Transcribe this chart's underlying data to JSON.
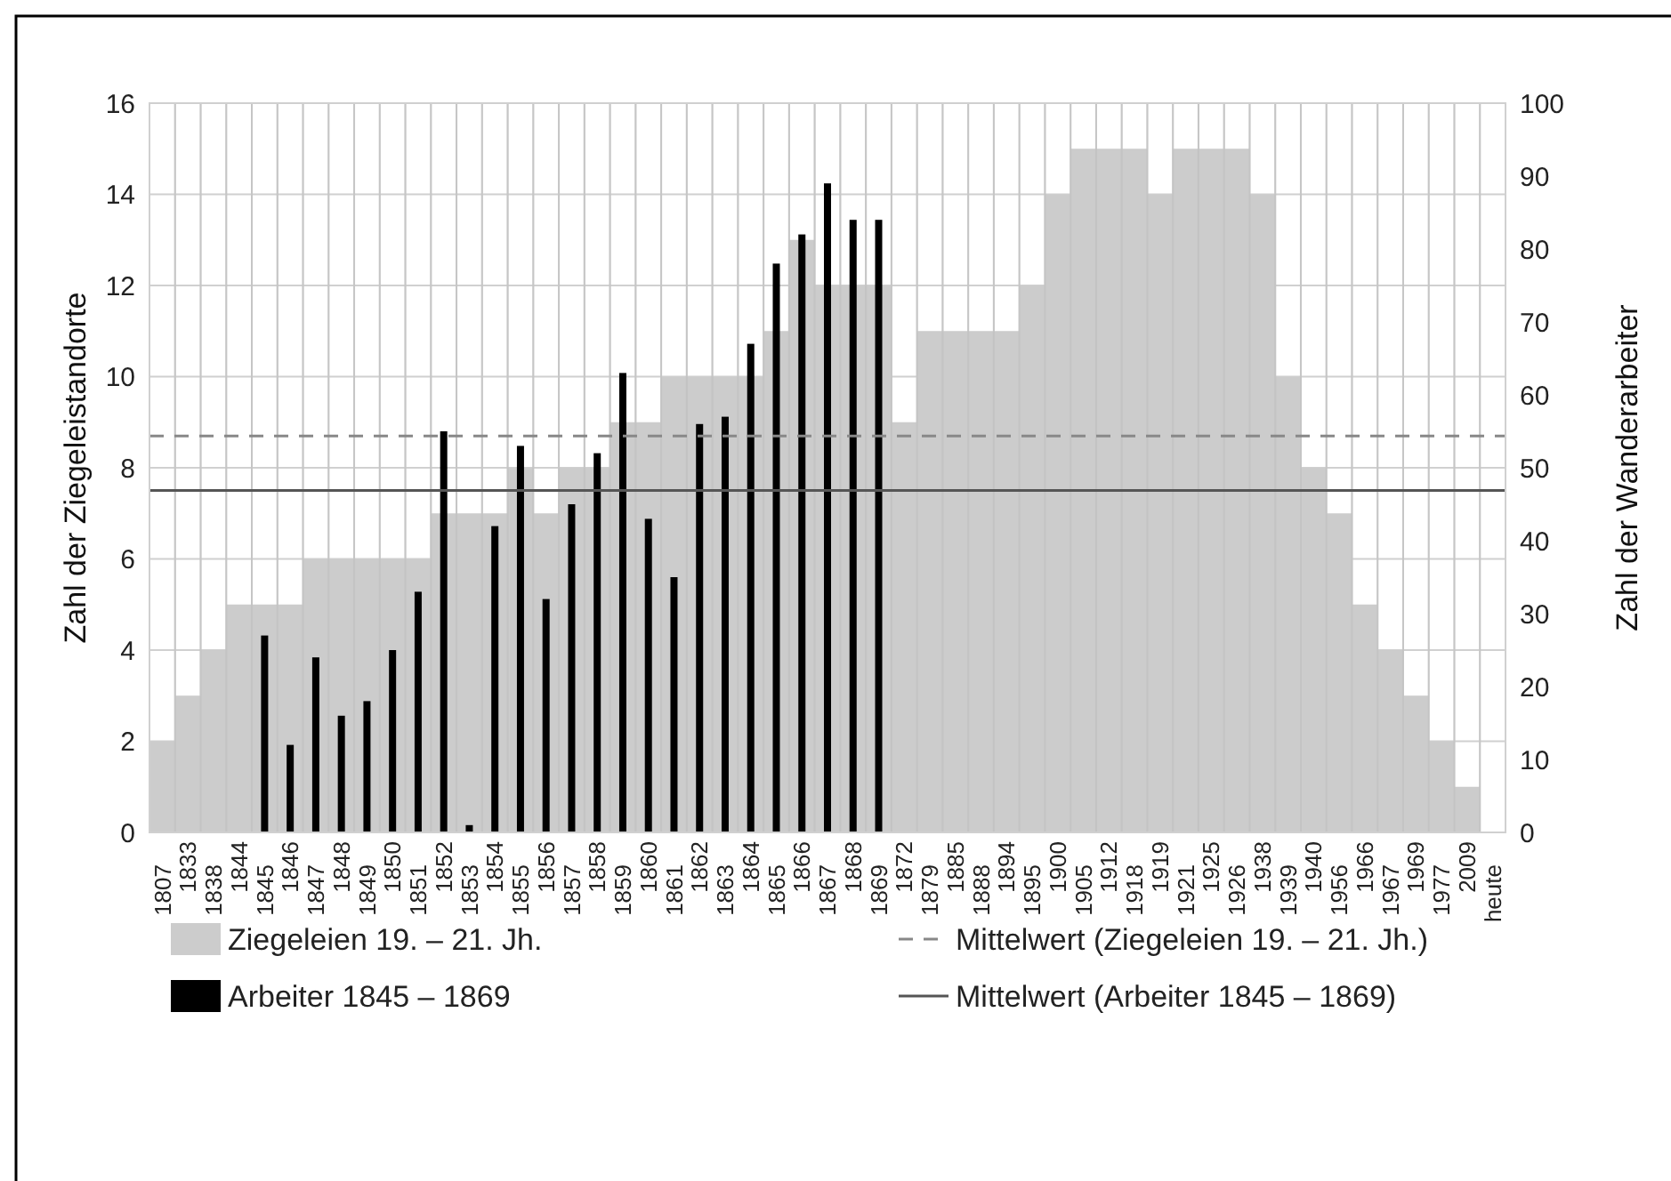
{
  "chart_data": {
    "type": "bar",
    "ylabel": "Zahl der Ziegeleistandorte",
    "y2label": "Zahl der Wanderarbeiter",
    "categories": [
      "1807",
      "1833",
      "1838",
      "1844",
      "1845",
      "1846",
      "1847",
      "1848",
      "1849",
      "1850",
      "1851",
      "1852",
      "1853",
      "1854",
      "1855",
      "1856",
      "1857",
      "1858",
      "1859",
      "1860",
      "1861",
      "1862",
      "1863",
      "1864",
      "1865",
      "1866",
      "1867",
      "1868",
      "1869",
      "1872",
      "1879",
      "1885",
      "1888",
      "1894",
      "1895",
      "1900",
      "1905",
      "1912",
      "1918",
      "1919",
      "1921",
      "1925",
      "1926",
      "1938",
      "1939",
      "1940",
      "1956",
      "1966",
      "1967",
      "1969",
      "1977",
      "2009",
      "heute"
    ],
    "series": [
      {
        "name": "Ziegeleien 19. – 21. Jh.",
        "color": "#cccccc",
        "values": [
          2,
          3,
          4,
          5,
          5,
          5,
          6,
          6,
          6,
          6,
          6,
          7,
          7,
          7,
          8,
          7,
          8,
          8,
          9,
          9,
          10,
          10,
          10,
          10,
          11,
          13,
          12,
          12,
          12,
          9,
          11,
          11,
          11,
          11,
          12,
          14,
          15,
          15,
          15,
          14,
          15,
          15,
          15,
          14,
          10,
          8,
          7,
          5,
          4,
          3,
          2,
          1,
          null
        ]
      },
      {
        "name": "Arbeiter 1845 – 1869",
        "color": "#000000",
        "axis": "y2",
        "values": [
          null,
          null,
          null,
          null,
          27,
          12,
          24,
          16,
          18,
          25,
          33,
          55,
          1,
          42,
          53,
          32,
          45,
          52,
          63,
          43,
          35,
          56,
          57,
          67,
          78,
          82,
          89,
          84,
          84,
          null,
          null,
          null,
          null,
          null,
          null,
          null,
          null,
          null,
          null,
          null,
          null,
          null,
          null,
          null,
          null,
          null,
          null,
          null,
          null,
          null,
          null,
          null,
          null
        ]
      }
    ],
    "ylim": [
      0,
      16
    ],
    "yticks": [
      0,
      2,
      4,
      6,
      8,
      10,
      12,
      14,
      16
    ],
    "y2lim": [
      0,
      100
    ],
    "y2ticks": [
      0,
      10,
      20,
      30,
      40,
      50,
      60,
      70,
      80,
      90,
      100
    ],
    "ref_lines": [
      {
        "axis": "y",
        "value": 8.7,
        "label": "Mittelwert (Ziegeleien 19. – 21. Jh.)",
        "color": "#888888",
        "line_style": "dashed"
      },
      {
        "axis": "y2",
        "value": 46.9,
        "label": "Mittelwert (Arbeiter 1845 – 1869)",
        "color": "#555555",
        "line_style": "solid"
      }
    ],
    "grid": true,
    "legend": "bottom"
  }
}
